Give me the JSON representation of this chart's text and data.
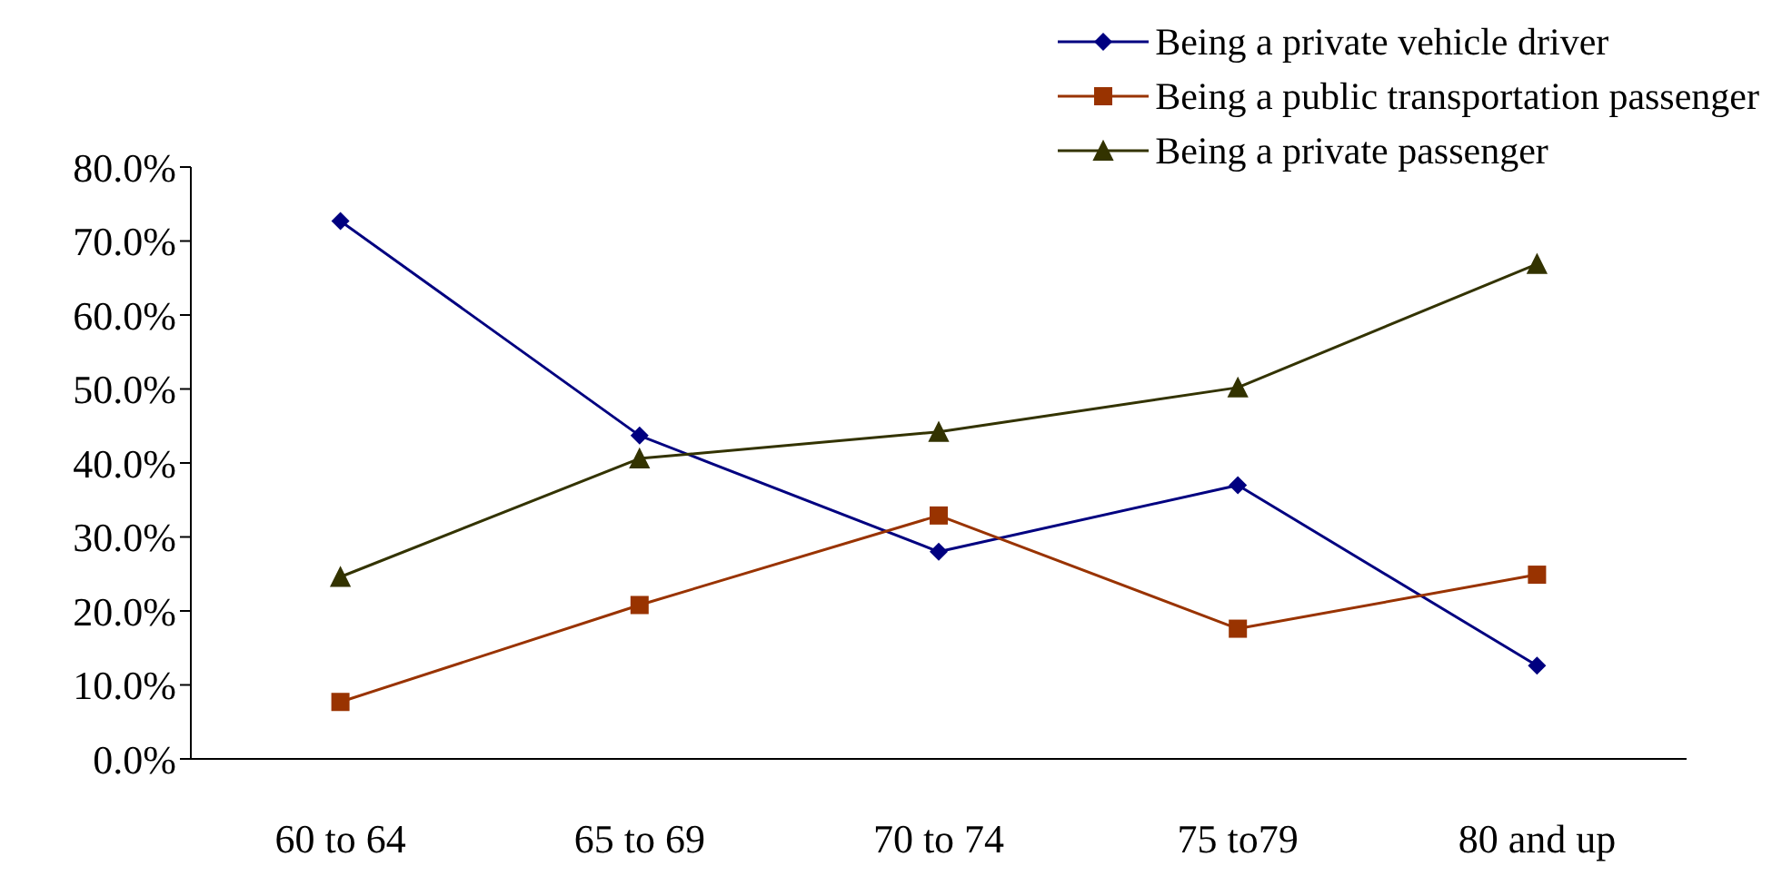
{
  "chart_data": {
    "type": "line",
    "categories": [
      "60 to 64",
      "65 to 69",
      "70 to 74",
      "75 to79",
      "80 and up"
    ],
    "series": [
      {
        "name": "Being a private vehicle driver",
        "color": "#000080",
        "marker": "diamond",
        "values": [
          72.7,
          43.7,
          28.0,
          37.0,
          12.6
        ]
      },
      {
        "name": "Being a public transportation passenger",
        "color": "#993300",
        "marker": "square",
        "values": [
          7.7,
          20.8,
          32.9,
          17.6,
          24.9
        ]
      },
      {
        "name": "Being a private passenger",
        "color": "#333300",
        "marker": "triangle",
        "values": [
          24.6,
          40.6,
          44.2,
          50.2,
          66.9
        ]
      }
    ],
    "ylim": [
      0,
      80
    ],
    "yticks": [
      {
        "value": 0,
        "label": "0.0%"
      },
      {
        "value": 10,
        "label": "10.0%"
      },
      {
        "value": 20,
        "label": "20.0%"
      },
      {
        "value": 30,
        "label": "30.0%"
      },
      {
        "value": 40,
        "label": "40.0%"
      },
      {
        "value": 50,
        "label": "50.0%"
      },
      {
        "value": 60,
        "label": "60.0%"
      },
      {
        "value": 70,
        "label": "70.0%"
      },
      {
        "value": 80,
        "label": "80.0%"
      }
    ],
    "grid": false,
    "legend": "top right",
    "line_style": "solid"
  }
}
